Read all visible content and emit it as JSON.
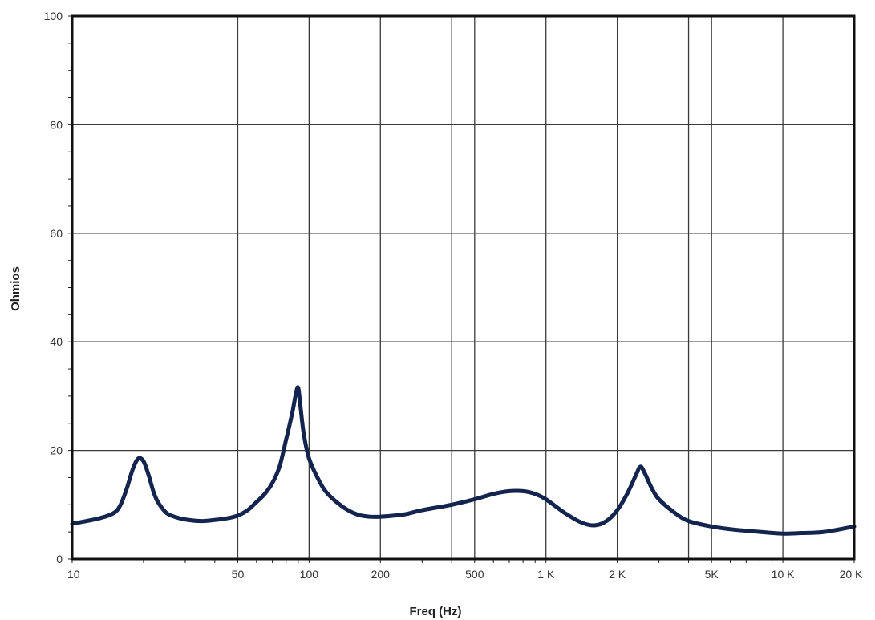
{
  "chart_data": {
    "type": "line",
    "title": "",
    "xlabel": "Freq (Hz)",
    "ylabel": "Ohmios",
    "x_scale": "log",
    "xlim": [
      10,
      20000
    ],
    "ylim": [
      0,
      100
    ],
    "grid": true,
    "y_ticks": [
      0,
      20,
      40,
      60,
      80,
      100
    ],
    "y_tick_labels": [
      "0",
      "20",
      "40",
      "60",
      "80",
      "100"
    ],
    "x_tick_values": [
      10,
      50,
      100,
      200,
      500,
      1000,
      2000,
      5000,
      10000,
      20000
    ],
    "x_tick_labels": [
      "10",
      "50",
      "100",
      "200",
      "500",
      "1 K",
      "2 K",
      "5K",
      "10 K",
      "20 K"
    ],
    "x_grid": [
      50,
      100,
      200,
      400,
      500,
      1000,
      2000,
      4000,
      5000,
      10000
    ],
    "series": [
      {
        "color": "#13254f",
        "x": [
          10,
          13,
          15,
          16,
          17,
          18,
          19,
          20,
          21,
          22,
          23,
          25,
          27,
          30,
          35,
          40,
          45,
          50,
          55,
          60,
          65,
          70,
          75,
          80,
          85,
          88,
          90,
          92,
          95,
          100,
          110,
          120,
          140,
          160,
          180,
          200,
          250,
          300,
          400,
          500,
          600,
          700,
          800,
          900,
          1000,
          1200,
          1400,
          1600,
          1800,
          2000,
          2200,
          2400,
          2500,
          2600,
          2800,
          3000,
          3500,
          4000,
          5000,
          6000,
          8000,
          10000,
          12000,
          15000,
          20000
        ],
        "y": [
          6.5,
          7.5,
          8.5,
          10,
          13,
          16.5,
          18.5,
          18,
          15.5,
          12.5,
          10.5,
          8.5,
          7.8,
          7.3,
          7,
          7.2,
          7.5,
          8,
          9,
          10.5,
          12,
          14,
          17,
          22,
          27,
          30.5,
          31.5,
          28,
          23,
          18.5,
          14.5,
          12,
          9.5,
          8.2,
          7.8,
          7.8,
          8.2,
          9,
          10,
          11,
          12,
          12.5,
          12.5,
          12,
          11,
          8.5,
          6.8,
          6.2,
          7,
          9,
          12,
          15.5,
          17,
          16,
          13,
          11,
          8.5,
          7,
          6,
          5.5,
          5,
          4.7,
          4.8,
          5,
          6
        ]
      }
    ]
  }
}
